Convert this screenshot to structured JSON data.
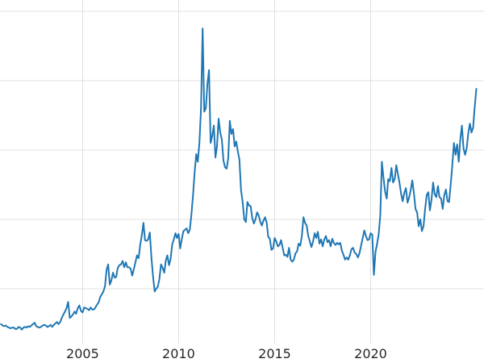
{
  "chart_data": {
    "type": "line",
    "title": "",
    "xlabel": "",
    "ylabel": "",
    "grid": true,
    "legend": false,
    "background_color": "#ffffff",
    "grid_color": "#e0e0e0",
    "tick_label_color": "#262626",
    "x_range": [
      2000.7,
      2025.9
    ],
    "y_range": [
      -0.7,
      51.6
    ],
    "x_ticks": [
      {
        "value": 2005,
        "label": "2005"
      },
      {
        "value": 2010,
        "label": "2010"
      },
      {
        "value": 2015,
        "label": "2015"
      },
      {
        "value": 2020,
        "label": "2020"
      }
    ],
    "y_gridlines": [
      10,
      20,
      30,
      40,
      50
    ],
    "series": [
      {
        "name": "series_1",
        "color": "#1f77b4",
        "x_start": 2000.75,
        "x_step_years": 0.0833333,
        "values": [
          4.9,
          4.7,
          4.6,
          4.7,
          4.5,
          4.4,
          4.3,
          4.4,
          4.4,
          4.2,
          4.2,
          4.5,
          4.4,
          4.1,
          4.4,
          4.5,
          4.4,
          4.6,
          4.5,
          4.7,
          4.9,
          5.1,
          4.6,
          4.5,
          4.4,
          4.5,
          4.7,
          4.8,
          4.7,
          4.5,
          4.6,
          4.8,
          4.5,
          4.8,
          5.0,
          5.2,
          4.9,
          5.2,
          5.8,
          6.3,
          6.7,
          7.2,
          8.1,
          5.8,
          6.0,
          6.3,
          6.7,
          6.4,
          7.2,
          7.6,
          6.8,
          6.6,
          7.3,
          7.2,
          7.1,
          6.9,
          7.3,
          7.0,
          7.0,
          7.3,
          7.7,
          8.0,
          8.8,
          9.2,
          9.6,
          10.4,
          12.7,
          13.5,
          10.6,
          11.2,
          12.3,
          11.6,
          11.7,
          13.0,
          13.4,
          13.5,
          14.0,
          13.1,
          13.8,
          13.1,
          13.1,
          12.9,
          11.9,
          12.8,
          13.8,
          14.8,
          14.4,
          16.3,
          17.7,
          19.5,
          17.0,
          16.9,
          17.1,
          18.1,
          14.5,
          11.8,
          9.6,
          10.0,
          10.3,
          11.4,
          13.5,
          13.0,
          12.3,
          14.1,
          14.8,
          13.4,
          14.3,
          16.4,
          17.1,
          18.0,
          17.3,
          17.9,
          15.8,
          17.2,
          18.3,
          18.5,
          18.7,
          18.0,
          18.5,
          20.7,
          23.5,
          26.8,
          29.4,
          28.3,
          31.0,
          36.0,
          47.5,
          35.5,
          36.0,
          39.5,
          41.5,
          31.0,
          32.0,
          33.5,
          28.9,
          30.5,
          34.5,
          32.5,
          31.5,
          28.5,
          27.5,
          27.3,
          28.8,
          34.2,
          32.3,
          33.0,
          30.5,
          31.2,
          29.8,
          28.6,
          24.2,
          22.5,
          20.0,
          19.6,
          22.5,
          22.0,
          21.9,
          20.2,
          19.4,
          20.0,
          21.0,
          20.6,
          19.7,
          19.1,
          19.8,
          20.3,
          19.5,
          17.5,
          17.2,
          15.6,
          15.8,
          17.3,
          16.8,
          16.1,
          16.3,
          17.0,
          15.9,
          14.8,
          14.9,
          14.6,
          15.9,
          14.2,
          13.9,
          14.2,
          15.1,
          15.4,
          16.5,
          16.2,
          17.6,
          20.3,
          19.5,
          19.1,
          17.6,
          16.8,
          16.0,
          16.8,
          18.0,
          17.3,
          18.2,
          16.5,
          17.1,
          16.1,
          17.1,
          17.6,
          16.7,
          17.0,
          16.1,
          17.2,
          16.6,
          16.3,
          16.6,
          16.4,
          16.6,
          15.5,
          14.9,
          14.2,
          14.5,
          14.2,
          14.8,
          15.7,
          15.9,
          15.2,
          15.0,
          14.5,
          15.1,
          16.2,
          17.3,
          18.4,
          17.6,
          17.0,
          17.1,
          18.0,
          17.8,
          12.0,
          15.3,
          16.5,
          17.8,
          20.5,
          28.3,
          26.0,
          24.0,
          23.0,
          25.8,
          25.5,
          27.4,
          25.3,
          25.8,
          27.8,
          26.5,
          25.3,
          23.7,
          22.6,
          23.8,
          24.5,
          22.4,
          23.1,
          24.2,
          25.6,
          23.8,
          21.5,
          21.0,
          19.0,
          20.0,
          18.3,
          19.0,
          21.5,
          23.5,
          23.9,
          21.3,
          22.8,
          25.3,
          23.6,
          23.2,
          24.8,
          23.2,
          23.0,
          21.5,
          23.5,
          24.3,
          22.6,
          22.5,
          25.0,
          27.8,
          31.0,
          29.3,
          30.8,
          28.3,
          31.5,
          33.5,
          30.2,
          29.3,
          30.3,
          32.5,
          33.8,
          32.5,
          33.2,
          36.2,
          38.8
        ]
      }
    ]
  }
}
